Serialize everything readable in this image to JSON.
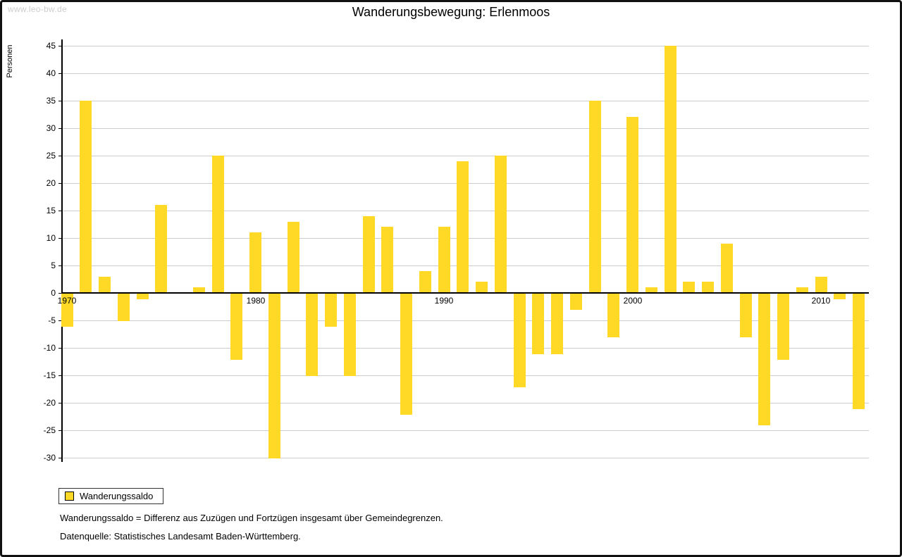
{
  "page": {
    "watermark": "www.leo-bw.de",
    "title": "Wanderungsbewegung: Erlenmoos"
  },
  "chart_data": {
    "type": "bar",
    "title": "Wanderungsbewegung: Erlenmoos",
    "xlabel": "",
    "ylabel": "Personen",
    "ylim": [
      -30,
      45
    ],
    "ytick_step": 5,
    "grid": true,
    "legend_position": "bottom-left",
    "series_name": "Wanderungssaldo",
    "bar_color": "#FFD925",
    "x_axis_labels": [
      1970,
      1980,
      1990,
      2000,
      2010
    ],
    "x": [
      1970,
      1971,
      1972,
      1973,
      1974,
      1975,
      1976,
      1977,
      1978,
      1979,
      1980,
      1981,
      1982,
      1983,
      1984,
      1985,
      1986,
      1987,
      1988,
      1989,
      1990,
      1991,
      1992,
      1993,
      1994,
      1995,
      1996,
      1997,
      1998,
      1999,
      2000,
      2001,
      2002,
      2003,
      2004,
      2005,
      2006,
      2007,
      2008,
      2009,
      2010,
      2011,
      2012
    ],
    "values": [
      -6,
      35,
      3,
      -5,
      -1,
      16,
      0,
      1,
      25,
      -12,
      11,
      -30,
      13,
      -15,
      -6,
      -15,
      14,
      12,
      -22,
      4,
      12,
      24,
      2,
      25,
      -17,
      -11,
      -11,
      -3,
      35,
      -8,
      32,
      1,
      45,
      2,
      2,
      9,
      -8,
      -24,
      -12,
      1,
      3,
      -1,
      -21
    ]
  },
  "legend": {
    "label": "Wanderungssaldo"
  },
  "footnotes": [
    "Wanderungssaldo = Differenz aus Zuzügen und Fortzügen insgesamt über Gemeindegrenzen.",
    "Datenquelle: Statistisches Landesamt Baden-Württemberg."
  ]
}
